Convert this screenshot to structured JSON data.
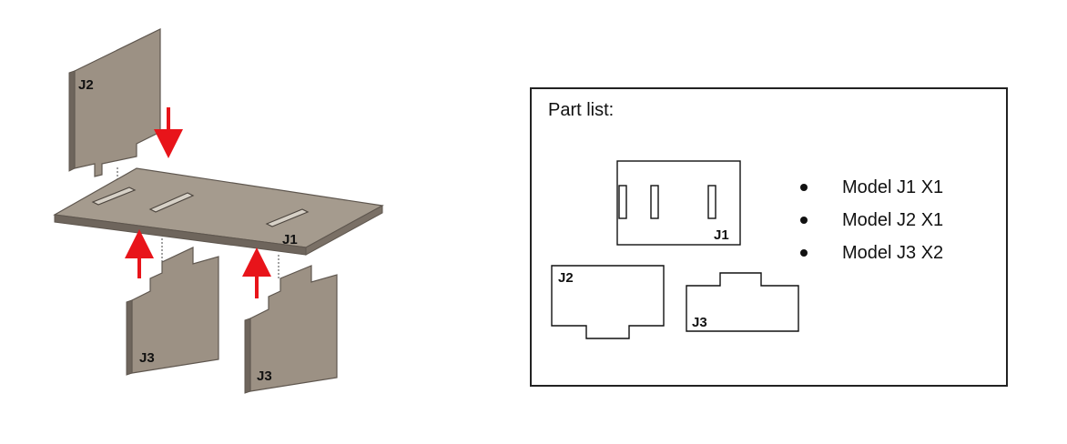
{
  "assembly": {
    "labels": {
      "j2": "J2",
      "j1": "J1",
      "j3_left": "J3",
      "j3_right": "J3"
    },
    "colors": {
      "panel_face": "#9c9184",
      "panel_edge": "#5f574f",
      "panel_side": "#7a7066",
      "arrow": "#e8141a"
    }
  },
  "part_list": {
    "title": "Part list:",
    "items": [
      "Model J1 X1",
      "Model J2 X1",
      "Model J3 X2"
    ],
    "drawing_labels": {
      "j1": "J1",
      "j2": "J2",
      "j3": "J3"
    }
  }
}
